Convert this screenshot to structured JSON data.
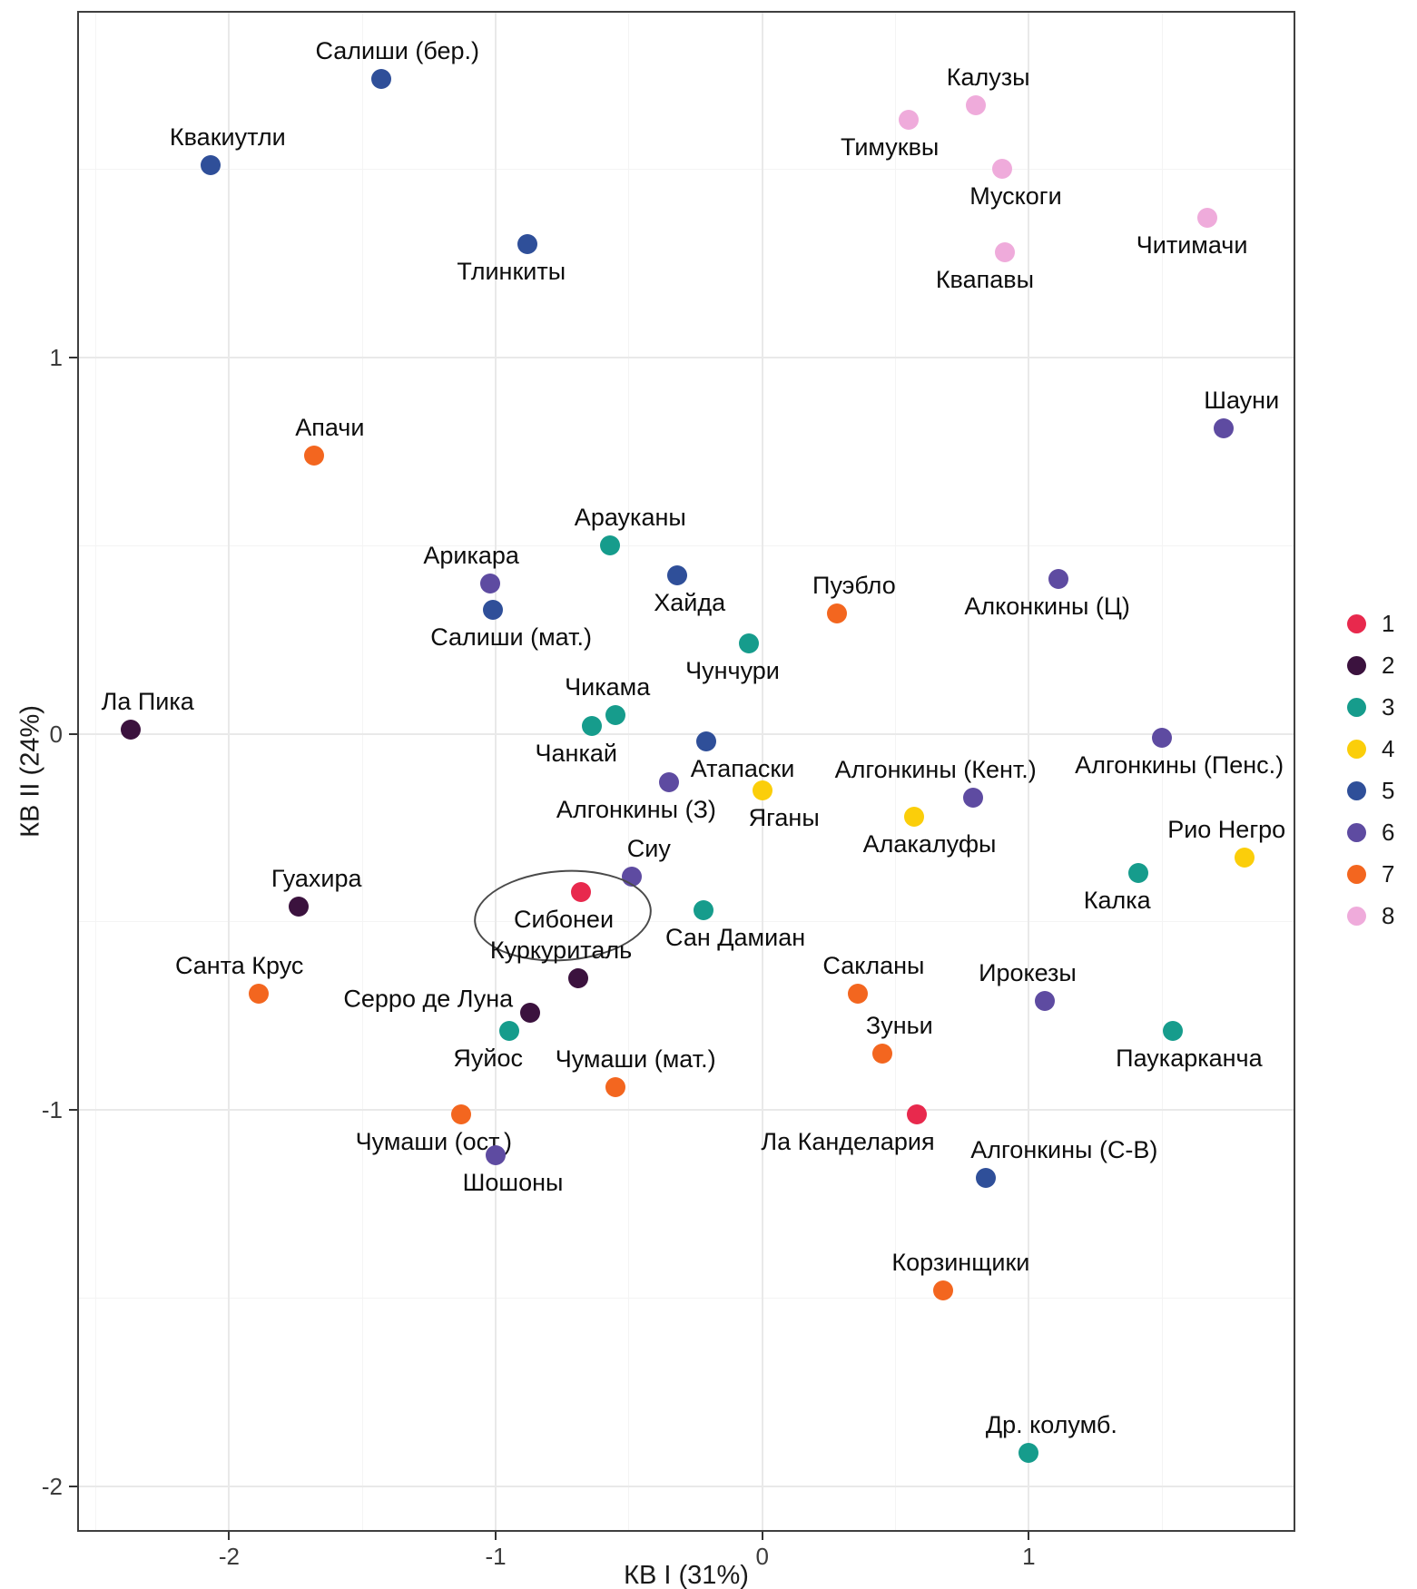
{
  "axes": {
    "x_title": "КВ I (31%)",
    "y_title": "КВ II (24%)",
    "x_tick_labels": [
      "-2",
      "-1",
      "0",
      "1"
    ],
    "y_tick_labels": [
      "1",
      "0",
      "-1",
      "-2"
    ]
  },
  "legend": {
    "position": "right",
    "items": [
      {
        "label": "1",
        "color": "#E8294D"
      },
      {
        "label": "2",
        "color": "#3B123E"
      },
      {
        "label": "3",
        "color": "#169C8C"
      },
      {
        "label": "4",
        "color": "#FBCE0A"
      },
      {
        "label": "5",
        "color": "#2F4F99"
      },
      {
        "label": "6",
        "color": "#5E4BA1"
      },
      {
        "label": "7",
        "color": "#F3661F"
      },
      {
        "label": "8",
        "color": "#EFABDB"
      }
    ]
  },
  "chart_data": {
    "type": "scatter",
    "title": "",
    "xlabel": "КВ I (31%)",
    "ylabel": "КВ II (24%)",
    "xlim": [
      -2.57,
      2.0
    ],
    "ylim": [
      -2.12,
      1.92
    ],
    "x_ticks": [
      -2,
      -1,
      0,
      1
    ],
    "y_ticks": [
      1,
      0,
      -1,
      -2
    ],
    "x_minor_gridlines": [
      -2.5,
      -1.5,
      -0.5,
      0.5,
      1.5
    ],
    "y_minor_gridlines": [
      1.5,
      0.5,
      -0.5,
      -1.5
    ],
    "grid": "on",
    "legend_position": "right",
    "points": [
      {
        "label": "Салиши (бер.)",
        "x": -1.43,
        "y": 1.74,
        "g": 5,
        "anchor": "above",
        "dx": 18
      },
      {
        "label": "Квакиутли",
        "x": -2.07,
        "y": 1.51,
        "g": 5,
        "anchor": "above",
        "dx": 19
      },
      {
        "label": "Тлинкиты",
        "x": -0.88,
        "y": 1.3,
        "g": 5,
        "anchor": "below",
        "dx": -18
      },
      {
        "label": "Калузы",
        "x": 0.8,
        "y": 1.67,
        "g": 8,
        "anchor": "above",
        "dx": 14
      },
      {
        "label": "Тимуквы",
        "x": 0.55,
        "y": 1.63,
        "g": 8,
        "anchor": "below",
        "dx": -21
      },
      {
        "label": "Мускоги",
        "x": 0.9,
        "y": 1.5,
        "g": 8,
        "anchor": "below",
        "dx": 15
      },
      {
        "label": "Квапавы",
        "x": 0.91,
        "y": 1.28,
        "g": 8,
        "anchor": "below",
        "dx": -22
      },
      {
        "label": "Читимачи",
        "x": 1.67,
        "y": 1.37,
        "g": 8,
        "anchor": "below",
        "dx": -17
      },
      {
        "label": "Шауни",
        "x": 1.73,
        "y": 0.81,
        "g": 6,
        "anchor": "above",
        "dx": 20
      },
      {
        "label": "Апачи",
        "x": -1.68,
        "y": 0.74,
        "g": 7,
        "anchor": "above",
        "dx": 17
      },
      {
        "label": "Арауканы",
        "x": -0.57,
        "y": 0.5,
        "g": 3,
        "anchor": "above",
        "dx": 22
      },
      {
        "label": "Арикара",
        "x": -1.02,
        "y": 0.4,
        "g": 6,
        "anchor": "above",
        "dx": -21
      },
      {
        "label": "Салиши (мат.)",
        "x": -1.01,
        "y": 0.33,
        "g": 5,
        "anchor": "below",
        "dx": 20
      },
      {
        "label": "Хайда",
        "x": -0.32,
        "y": 0.42,
        "g": 5,
        "anchor": "below",
        "dx": 14
      },
      {
        "label": "Пуэбло",
        "x": 0.28,
        "y": 0.32,
        "g": 7,
        "anchor": "above",
        "dx": 19
      },
      {
        "label": "Алконкины (Ц)",
        "x": 1.11,
        "y": 0.41,
        "g": 6,
        "anchor": "below",
        "dx": -12
      },
      {
        "label": "Чунчури",
        "x": -0.05,
        "y": 0.24,
        "g": 3,
        "anchor": "below",
        "dx": -18
      },
      {
        "label": "Чикама",
        "x": -0.55,
        "y": 0.05,
        "g": 3,
        "anchor": "above",
        "dx": -9
      },
      {
        "label": "Чанкай",
        "x": -0.64,
        "y": 0.02,
        "g": 3,
        "anchor": "below",
        "dx": -17
      },
      {
        "label": "Ла Пика",
        "x": -2.37,
        "y": 0.01,
        "g": 2,
        "anchor": "above",
        "dx": 19
      },
      {
        "label": "Атапаски",
        "x": -0.21,
        "y": -0.02,
        "g": 5,
        "anchor": "below",
        "dx": 40
      },
      {
        "label": "Алгонкины (Пенс.)",
        "x": 1.5,
        "y": -0.01,
        "g": 6,
        "anchor": "below",
        "dx": 19
      },
      {
        "label": "Алгонкины (З)",
        "x": -0.35,
        "y": -0.13,
        "g": 6,
        "anchor": "below",
        "dx": -36
      },
      {
        "label": "Яганы",
        "x": 0.0,
        "y": -0.15,
        "g": 4,
        "anchor": "below",
        "dx": 24
      },
      {
        "label": "Алгонкины (Кент.)",
        "x": 0.79,
        "y": -0.17,
        "g": 6,
        "anchor": "above",
        "dx": -41
      },
      {
        "label": "Алакалуфы",
        "x": 0.57,
        "y": -0.22,
        "g": 4,
        "anchor": "below",
        "dx": 17
      },
      {
        "label": "Рио Негро",
        "x": 1.81,
        "y": -0.33,
        "g": 4,
        "anchor": "above",
        "dx": -20
      },
      {
        "label": "Сиу",
        "x": -0.49,
        "y": -0.38,
        "g": 6,
        "anchor": "above",
        "dx": 19
      },
      {
        "label": "Калка",
        "x": 1.41,
        "y": -0.37,
        "g": 3,
        "anchor": "below",
        "dx": -23
      },
      {
        "label": "Сибонеи",
        "x": -0.68,
        "y": -0.42,
        "g": 1,
        "anchor": "below",
        "dx": -19,
        "circled": true
      },
      {
        "label": "Гуахира",
        "x": -1.74,
        "y": -0.46,
        "g": 2,
        "anchor": "above",
        "dx": 20
      },
      {
        "label": "Сан Дамиан",
        "x": -0.22,
        "y": -0.47,
        "g": 3,
        "anchor": "below",
        "dx": 35
      },
      {
        "label": "Куркуриталь",
        "x": -0.69,
        "y": -0.65,
        "g": 2,
        "anchor": "above",
        "dx": -19
      },
      {
        "label": "Сакланы",
        "x": 0.36,
        "y": -0.69,
        "g": 7,
        "anchor": "above",
        "dx": 17
      },
      {
        "label": "Санта Крус",
        "x": -1.89,
        "y": -0.69,
        "g": 7,
        "anchor": "above",
        "dx": -21
      },
      {
        "label": "Ирокезы",
        "x": 1.06,
        "y": -0.71,
        "g": 6,
        "anchor": "above",
        "dx": -19
      },
      {
        "label": "Серро де Луна",
        "x": -0.87,
        "y": -0.74,
        "g": 2,
        "anchor": "left",
        "dy": -15
      },
      {
        "label": "Яуйос",
        "x": -0.95,
        "y": -0.79,
        "g": 3,
        "anchor": "below",
        "dx": -23
      },
      {
        "label": "Паукарканча",
        "x": 1.54,
        "y": -0.79,
        "g": 3,
        "anchor": "below",
        "dx": 18
      },
      {
        "label": "Зуньи",
        "x": 0.45,
        "y": -0.85,
        "g": 7,
        "anchor": "above",
        "dx": 19
      },
      {
        "label": "Чумаши (мат.)",
        "x": -0.55,
        "y": -0.94,
        "g": 7,
        "anchor": "above",
        "dx": 22
      },
      {
        "label": "Ла Канделария",
        "x": 0.58,
        "y": -1.01,
        "g": 1,
        "anchor": "below",
        "dx": -76
      },
      {
        "label": "Чумаши (ост.)",
        "x": -1.13,
        "y": -1.01,
        "g": 7,
        "anchor": "below",
        "dx": -30
      },
      {
        "label": "Шошоны",
        "x": -1.0,
        "y": -1.12,
        "g": 6,
        "anchor": "below",
        "dx": 19
      },
      {
        "label": "Алгонкины (С-В)",
        "x": 0.84,
        "y": -1.18,
        "g": 5,
        "anchor": "above",
        "dx": 86
      },
      {
        "label": "Корзинщики",
        "x": 0.68,
        "y": -1.48,
        "g": 7,
        "anchor": "above",
        "dx": 19
      },
      {
        "label": "Др. колумб.",
        "x": 1.0,
        "y": -1.91,
        "g": 3,
        "anchor": "above",
        "dx": 25
      }
    ]
  }
}
